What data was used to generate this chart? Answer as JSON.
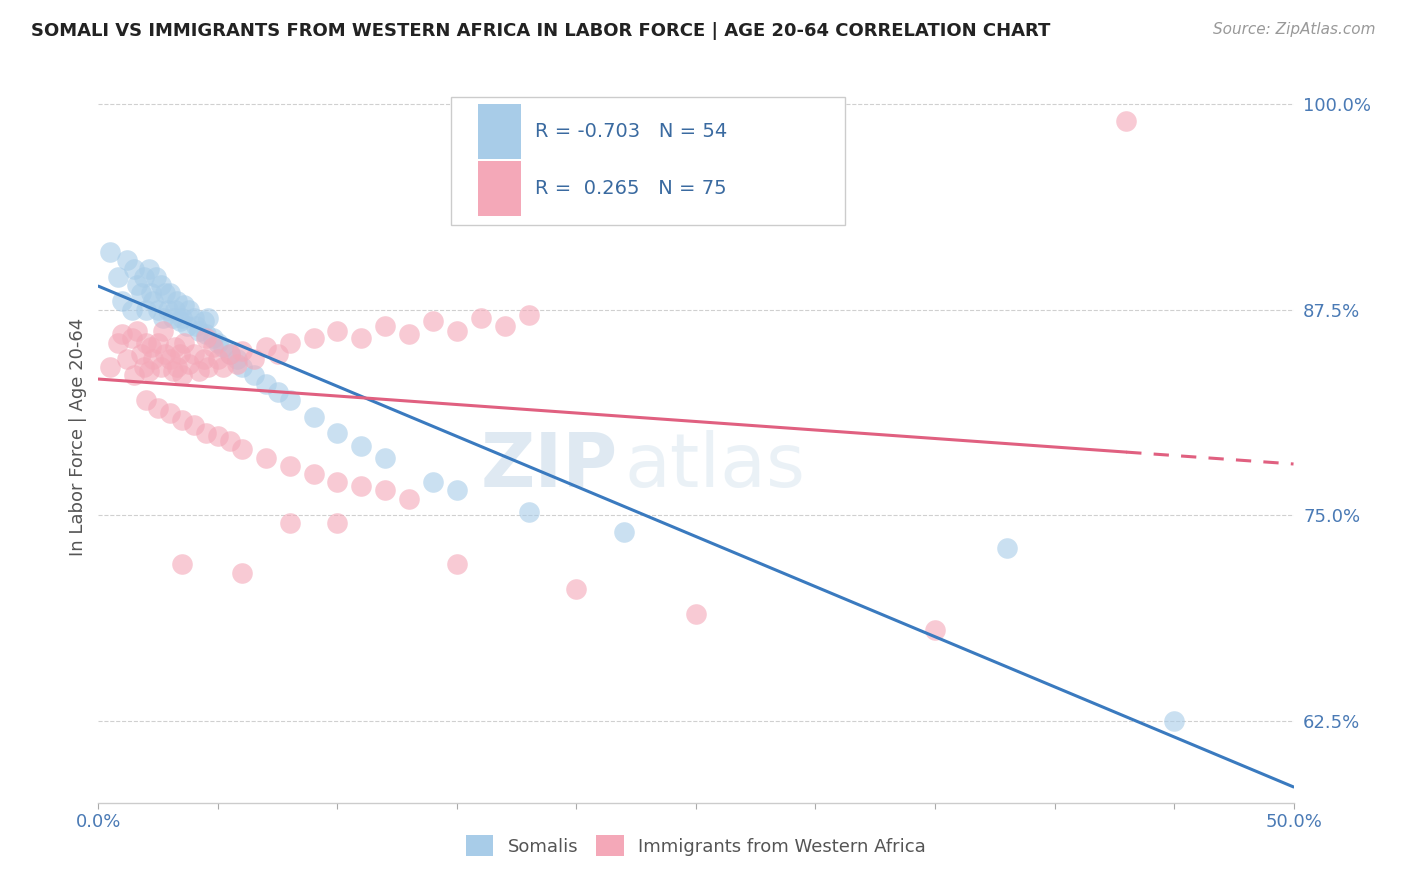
{
  "title": "SOMALI VS IMMIGRANTS FROM WESTERN AFRICA IN LABOR FORCE | AGE 20-64 CORRELATION CHART",
  "source": "Source: ZipAtlas.com",
  "ylabel": "In Labor Force | Age 20-64",
  "xlim": [
    0.0,
    0.5
  ],
  "ylim": [
    0.575,
    1.02
  ],
  "xticks": [
    0.0,
    0.05,
    0.1,
    0.15,
    0.2,
    0.25,
    0.3,
    0.35,
    0.4,
    0.45,
    0.5
  ],
  "xticklabels": [
    "0.0%",
    "",
    "",
    "",
    "",
    "",
    "",
    "",
    "",
    "",
    "50.0%"
  ],
  "yticks": [
    0.625,
    0.75,
    0.875,
    1.0
  ],
  "yticklabels": [
    "62.5%",
    "75.0%",
    "87.5%",
    "100.0%"
  ],
  "somali_R": -0.703,
  "somali_N": 54,
  "western_R": 0.265,
  "western_N": 75,
  "somali_color": "#a8cce8",
  "western_color": "#f4a8b8",
  "somali_line_color": "#3a7abf",
  "western_line_color": "#e06080",
  "legend_label_somali": "Somalis",
  "legend_label_western": "Immigrants from Western Africa",
  "background_color": "#ffffff",
  "watermark_zip": "ZIP",
  "watermark_atlas": "atlas",
  "somali_x": [
    0.005,
    0.008,
    0.01,
    0.012,
    0.014,
    0.015,
    0.016,
    0.018,
    0.019,
    0.02,
    0.021,
    0.022,
    0.023,
    0.024,
    0.025,
    0.026,
    0.027,
    0.028,
    0.029,
    0.03,
    0.031,
    0.032,
    0.033,
    0.034,
    0.035,
    0.036,
    0.037,
    0.038,
    0.04,
    0.041,
    0.042,
    0.044,
    0.045,
    0.046,
    0.048,
    0.05,
    0.052,
    0.055,
    0.058,
    0.06,
    0.065,
    0.07,
    0.075,
    0.08,
    0.09,
    0.1,
    0.11,
    0.12,
    0.14,
    0.15,
    0.18,
    0.22,
    0.38,
    0.45
  ],
  "somali_y": [
    0.91,
    0.895,
    0.88,
    0.905,
    0.875,
    0.9,
    0.89,
    0.885,
    0.895,
    0.875,
    0.9,
    0.885,
    0.88,
    0.895,
    0.875,
    0.89,
    0.87,
    0.885,
    0.875,
    0.885,
    0.87,
    0.875,
    0.88,
    0.868,
    0.87,
    0.878,
    0.865,
    0.875,
    0.87,
    0.865,
    0.862,
    0.868,
    0.86,
    0.87,
    0.858,
    0.855,
    0.852,
    0.848,
    0.845,
    0.84,
    0.835,
    0.83,
    0.825,
    0.82,
    0.81,
    0.8,
    0.792,
    0.785,
    0.77,
    0.765,
    0.752,
    0.74,
    0.73,
    0.625
  ],
  "western_x": [
    0.005,
    0.008,
    0.01,
    0.012,
    0.014,
    0.015,
    0.016,
    0.018,
    0.019,
    0.02,
    0.021,
    0.022,
    0.023,
    0.025,
    0.026,
    0.027,
    0.028,
    0.03,
    0.031,
    0.032,
    0.033,
    0.034,
    0.035,
    0.036,
    0.038,
    0.04,
    0.042,
    0.044,
    0.045,
    0.046,
    0.048,
    0.05,
    0.052,
    0.055,
    0.058,
    0.06,
    0.065,
    0.07,
    0.075,
    0.08,
    0.09,
    0.1,
    0.11,
    0.12,
    0.13,
    0.14,
    0.15,
    0.16,
    0.17,
    0.18,
    0.02,
    0.025,
    0.03,
    0.035,
    0.04,
    0.045,
    0.05,
    0.055,
    0.06,
    0.07,
    0.08,
    0.09,
    0.1,
    0.11,
    0.12,
    0.13,
    0.035,
    0.06,
    0.08,
    0.1,
    0.15,
    0.2,
    0.25,
    0.35,
    0.43
  ],
  "western_y": [
    0.84,
    0.855,
    0.86,
    0.845,
    0.858,
    0.835,
    0.862,
    0.848,
    0.84,
    0.855,
    0.838,
    0.852,
    0.845,
    0.855,
    0.84,
    0.862,
    0.848,
    0.845,
    0.838,
    0.852,
    0.84,
    0.848,
    0.835,
    0.855,
    0.842,
    0.848,
    0.838,
    0.845,
    0.858,
    0.84,
    0.852,
    0.845,
    0.84,
    0.848,
    0.842,
    0.85,
    0.845,
    0.852,
    0.848,
    0.855,
    0.858,
    0.862,
    0.858,
    0.865,
    0.86,
    0.868,
    0.862,
    0.87,
    0.865,
    0.872,
    0.82,
    0.815,
    0.812,
    0.808,
    0.805,
    0.8,
    0.798,
    0.795,
    0.79,
    0.785,
    0.78,
    0.775,
    0.77,
    0.768,
    0.765,
    0.76,
    0.72,
    0.715,
    0.745,
    0.745,
    0.72,
    0.705,
    0.69,
    0.68,
    0.99
  ]
}
